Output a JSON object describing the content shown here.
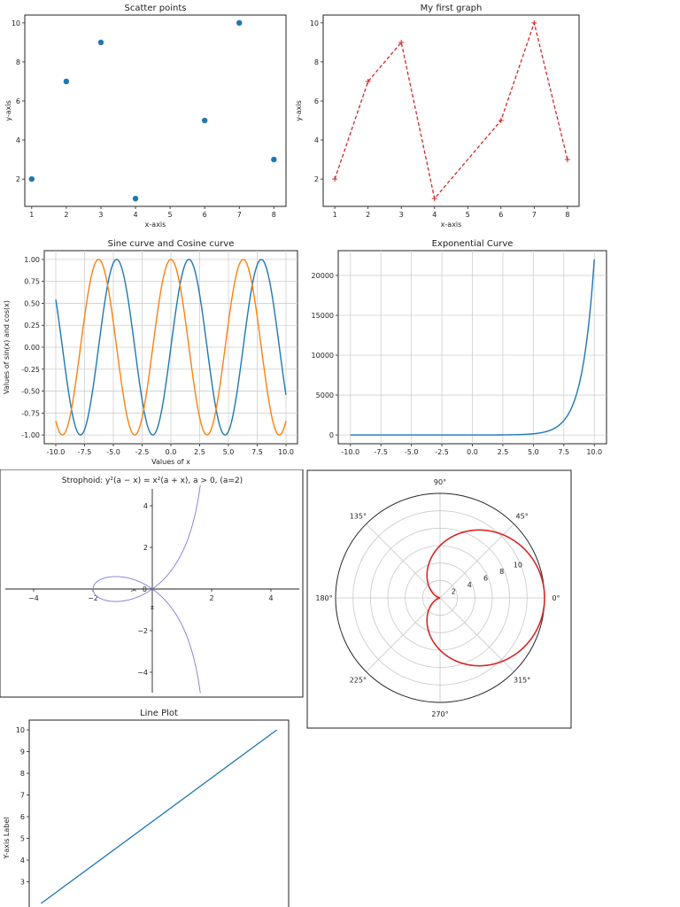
{
  "chart_data": [
    {
      "id": "scatter",
      "type": "scatter",
      "title": "Scatter points",
      "xlabel": "x-axis",
      "ylabel": "y-axis",
      "xlim": [
        0.8,
        8.35
      ],
      "ylim": [
        0.6,
        10.4
      ],
      "xticks": [
        1,
        2,
        3,
        4,
        5,
        6,
        7,
        8
      ],
      "yticks": [
        2,
        4,
        6,
        8,
        10
      ],
      "x": [
        1,
        2,
        3,
        4,
        6,
        7,
        8
      ],
      "y": [
        2,
        7,
        9,
        1,
        5,
        10,
        3
      ],
      "color": "#1f77b4",
      "grid": false
    },
    {
      "id": "first-graph",
      "type": "line",
      "title": "My first graph",
      "xlabel": "x-axis",
      "ylabel": "y-axis",
      "xlim": [
        0.65,
        8.35
      ],
      "ylim": [
        0.6,
        10.4
      ],
      "xticks": [
        1,
        2,
        3,
        4,
        5,
        6,
        7,
        8
      ],
      "yticks": [
        2,
        4,
        6,
        8,
        10
      ],
      "x": [
        1,
        2,
        3,
        4,
        6,
        7,
        8
      ],
      "y": [
        2,
        7,
        9,
        1,
        5,
        10,
        3
      ],
      "color": "#d62728",
      "linestyle": "dashed",
      "marker": "+",
      "grid": false
    },
    {
      "id": "sine-cosine",
      "type": "line",
      "title": "Sine curve and Cosine curve",
      "xlabel": "Values of x",
      "ylabel": "Values of sin(x) and cos(x)",
      "xlim": [
        -11,
        11
      ],
      "ylim": [
        -1.1,
        1.1
      ],
      "xticks": [
        "-10.0",
        "-7.5",
        "-5.0",
        "-2.5",
        "0.0",
        "2.5",
        "5.0",
        "7.5",
        "10.0"
      ],
      "yticks": [
        "1.00",
        "0.75",
        "0.50",
        "0.25",
        "0.00",
        "-0.25",
        "-0.50",
        "-0.75",
        "-1.00"
      ],
      "series": [
        {
          "function": "sin(x)",
          "domain": [
            -10,
            10
          ],
          "color": "#1f77b4"
        },
        {
          "function": "cos(x)",
          "domain": [
            -10,
            10
          ],
          "color": "#ff7f0e"
        }
      ],
      "grid": true
    },
    {
      "id": "exponential",
      "type": "line",
      "title": "Exponential Curve",
      "xlim": [
        -11,
        11
      ],
      "ylim": [
        -1100,
        23100
      ],
      "xticks": [
        "-10.0",
        "-7.5",
        "-5.0",
        "-2.5",
        "0.0",
        "2.5",
        "5.0",
        "7.5",
        "10.0"
      ],
      "yticks": [
        "20000",
        "15000",
        "10000",
        "5000",
        "0"
      ],
      "series": [
        {
          "function": "exp(x)",
          "domain": [
            -10,
            10
          ],
          "color": "#1f77b4"
        }
      ],
      "grid": true
    },
    {
      "id": "strophoid",
      "type": "line",
      "title": "Strophoid: y²(a − x) = x²(a + x), a > 0, (a=2)",
      "xlim": [
        -5,
        5
      ],
      "ylim": [
        -5,
        5
      ],
      "xticks": [
        "−4",
        "−2",
        "2",
        "4"
      ],
      "yticks": [
        "4",
        "2",
        "−2",
        "−4"
      ],
      "origin_labels": [
        "0",
        "y",
        "x"
      ],
      "series": [
        {
          "function": "strophoid a=2",
          "color": "#7b7bd6"
        }
      ],
      "grid": false
    },
    {
      "id": "polar",
      "type": "line",
      "polar": true,
      "rlim": [
        0,
        12
      ],
      "rticks": [
        "2",
        "4",
        "6",
        "8",
        "10"
      ],
      "angle_labels": [
        "0°",
        "45°",
        "90°",
        "135°",
        "180°",
        "225°",
        "270°",
        "315°"
      ],
      "series": [
        {
          "function": "r = 6 + 6·cos(θ)",
          "color": "#d62728"
        }
      ],
      "grid": true
    },
    {
      "id": "line-plot",
      "type": "line",
      "title": "Line Plot",
      "ylabel": "Y-axis Label",
      "ylim": [
        1.55,
        10.45
      ],
      "xlim": [
        0.55,
        10.45
      ],
      "yticks": [
        3,
        4,
        5,
        6,
        7,
        8,
        9,
        10
      ],
      "x": [
        1,
        10
      ],
      "y": [
        2,
        10
      ],
      "color": "#1f77b4",
      "grid": false
    }
  ]
}
